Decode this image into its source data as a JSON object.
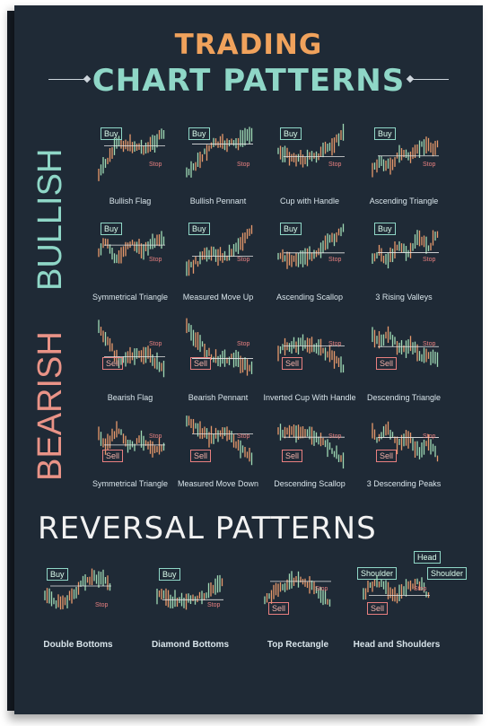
{
  "title": {
    "line1": "TRADING",
    "line2": "CHART PATTERNS"
  },
  "side_labels": {
    "bullish": "BULLISH",
    "bearish": "BEARISH"
  },
  "reversal_title": "REVERSAL PATTERNS",
  "tags": {
    "buy": "Buy",
    "sell": "Sell",
    "stop": "Stop",
    "head": "Head",
    "shoulder": "Shoulder"
  },
  "bullish_patterns": [
    "Bullish Flag",
    "Bullish Pennant",
    "Cup with Handle",
    "Ascending Triangle",
    "Symmetrical Triangle",
    "Measured Move Up",
    "Ascending Scallop",
    "3 Rising Valleys"
  ],
  "bearish_patterns": [
    "Bearish Flag",
    "Bearish Pennant",
    "Inverted Cup With Handle",
    "Descending Triangle",
    "Symmetrical Triangle",
    "Measured Move Down",
    "Descending Scallop",
    "3 Descending Peaks"
  ],
  "reversal_patterns": [
    "Double Bottoms",
    "Diamond Bottoms",
    "Top Rectangle",
    "Head and Shoulders"
  ],
  "colors": {
    "background": "#1f2a36",
    "bull_candle": "#9fd9b5",
    "bear_candle": "#e89a6c",
    "buy": "#8fd7c7",
    "sell": "#e98080",
    "title_top": "#f0a25c",
    "title_bottom": "#8fd7c7"
  }
}
